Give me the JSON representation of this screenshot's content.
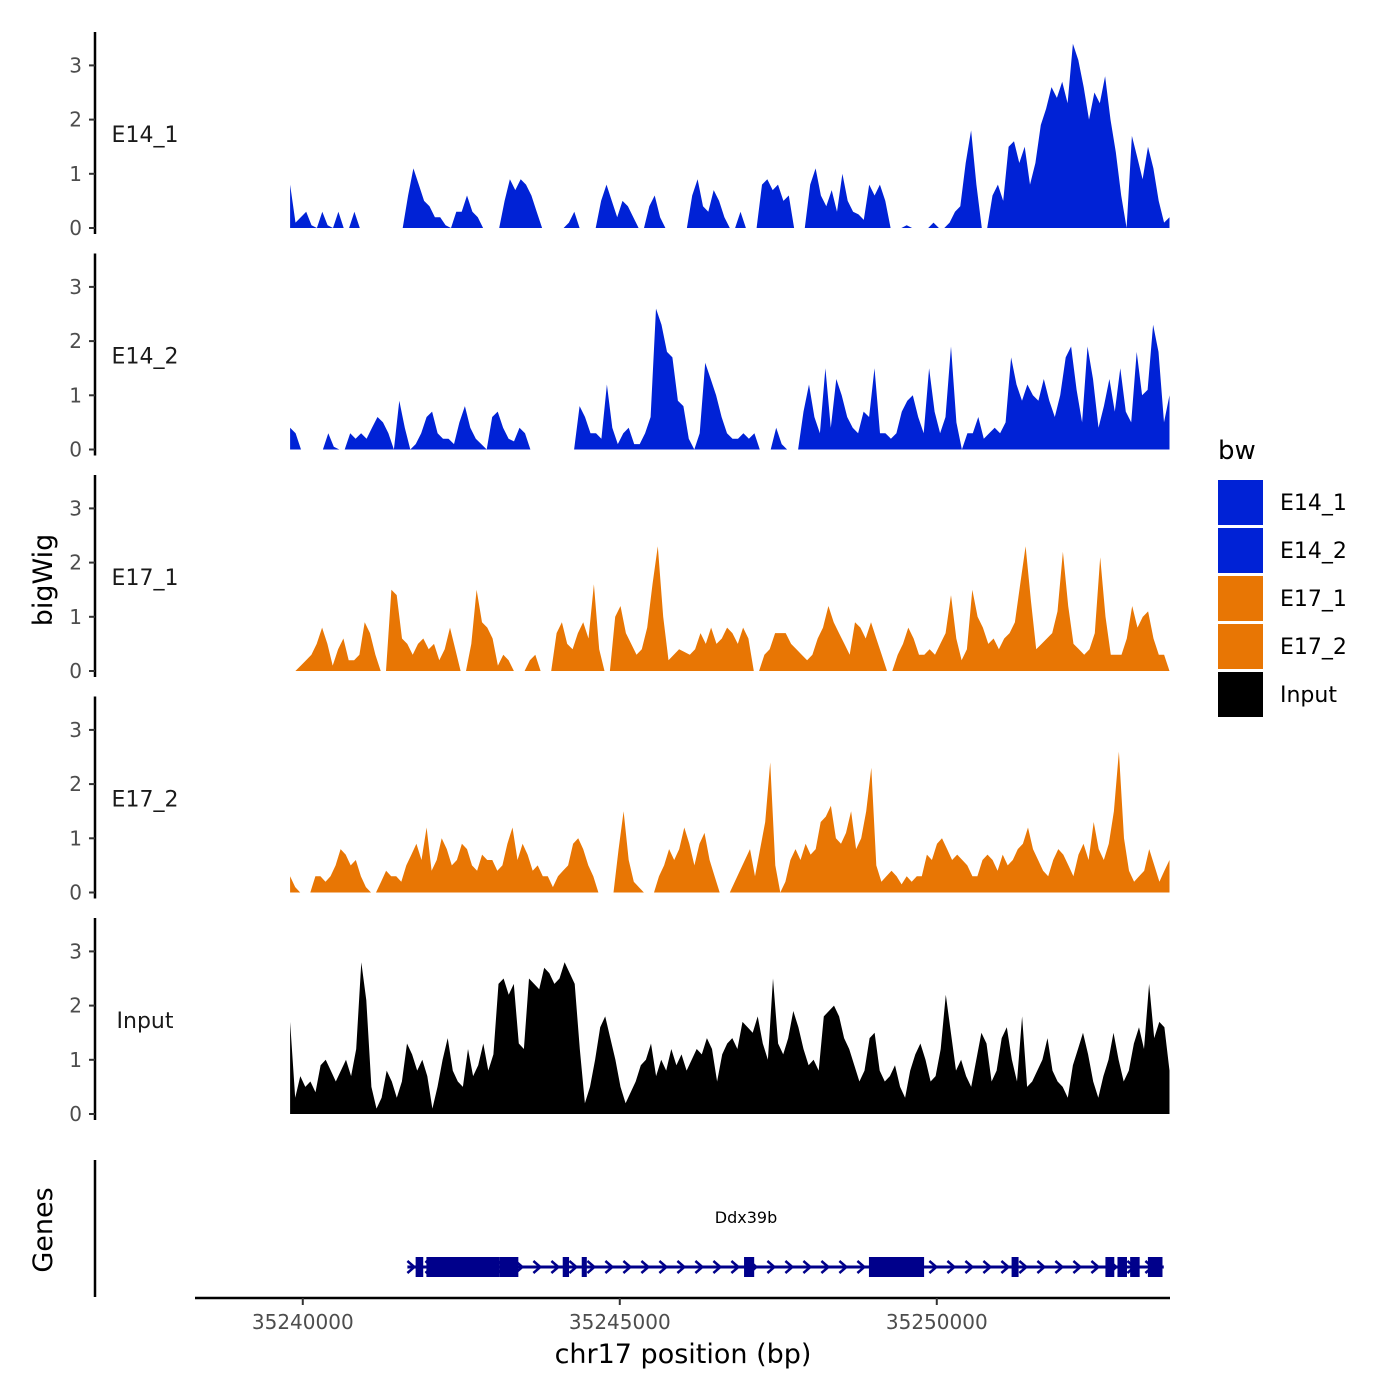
{
  "chart_data": {
    "type": "area",
    "chromosome": "chr17",
    "xlabel": "chr17 position (bp)",
    "ylabel": "bigWig",
    "genes_label": "Genes",
    "xlim": [
      35238300,
      35253600
    ],
    "data_range": [
      35239800,
      35253670
    ],
    "xticks": [
      35240000,
      35245000,
      35250000
    ],
    "xtick_labels": [
      "35240000",
      "35245000",
      "35250000"
    ],
    "ylim": [
      0,
      3.6
    ],
    "yticks": [
      0,
      1,
      2,
      3
    ],
    "ytick_labels": [
      "0",
      "1",
      "2",
      "3"
    ],
    "legend": {
      "title": "bw",
      "entries": [
        {
          "name": "E14_1",
          "color": "#0022d6"
        },
        {
          "name": "E14_2",
          "color": "#0022d6"
        },
        {
          "name": "E17_1",
          "color": "#e87604"
        },
        {
          "name": "E17_2",
          "color": "#e87604"
        },
        {
          "name": "Input",
          "color": "#000000"
        }
      ]
    },
    "series": [
      {
        "name": "E14_1",
        "color": "#0022d6",
        "values": [
          0.8,
          0.1,
          0.2,
          0.3,
          0.05,
          0,
          0.3,
          0.05,
          0,
          0.3,
          0,
          0,
          0.3,
          0,
          0,
          0,
          0,
          0,
          0,
          0,
          0,
          0,
          0.6,
          1.1,
          0.8,
          0.5,
          0.4,
          0.2,
          0.2,
          0.05,
          0,
          0.3,
          0.3,
          0.6,
          0.3,
          0.2,
          0,
          0,
          0,
          0,
          0.5,
          0.9,
          0.7,
          0.9,
          0.8,
          0.6,
          0.3,
          0,
          0,
          0,
          0,
          0,
          0.1,
          0.3,
          0,
          0,
          0,
          0,
          0.5,
          0.8,
          0.5,
          0.2,
          0.5,
          0.4,
          0.2,
          0,
          0,
          0.4,
          0.6,
          0.2,
          0,
          0,
          0,
          0,
          0,
          0.6,
          0.9,
          0.4,
          0.3,
          0.7,
          0.5,
          0.2,
          0,
          0,
          0.3,
          0,
          0,
          0,
          0.8,
          0.9,
          0.7,
          0.8,
          0.5,
          0.6,
          0,
          0,
          0,
          0.8,
          1.1,
          0.6,
          0.4,
          0.7,
          0.3,
          1.0,
          0.5,
          0.3,
          0.25,
          0.15,
          0.8,
          0.6,
          0.8,
          0.5,
          0,
          0,
          0,
          0.05,
          0,
          0,
          0,
          0,
          0.1,
          0,
          0,
          0.1,
          0.3,
          0.4,
          1.2,
          1.8,
          0.8,
          0,
          0,
          0.6,
          0.8,
          0.5,
          1.5,
          1.6,
          1.2,
          1.5,
          0.8,
          1.2,
          1.9,
          2.2,
          2.6,
          2.4,
          2.7,
          2.3,
          3.4,
          3.1,
          2.6,
          2.0,
          2.5,
          2.3,
          2.8,
          2.0,
          1.4,
          0.6,
          0,
          1.7,
          1.3,
          0.9,
          1.5,
          1.1,
          0.5,
          0.1,
          0.2
        ]
      },
      {
        "name": "E14_2",
        "color": "#0022d6",
        "values": [
          0.4,
          0.3,
          0,
          0,
          0,
          0,
          0,
          0.3,
          0.05,
          0,
          0,
          0.3,
          0.2,
          0.3,
          0.2,
          0.4,
          0.6,
          0.5,
          0.3,
          0,
          0.9,
          0.4,
          0,
          0.1,
          0.3,
          0.6,
          0.7,
          0.3,
          0.2,
          0.2,
          0.1,
          0.5,
          0.8,
          0.4,
          0.2,
          0.1,
          0,
          0.6,
          0.7,
          0.4,
          0.2,
          0.15,
          0.4,
          0.3,
          0,
          0,
          0,
          0,
          0,
          0,
          0,
          0,
          0,
          0.8,
          0.6,
          0.3,
          0.3,
          0.2,
          1.2,
          0.4,
          0.1,
          0.3,
          0.4,
          0.1,
          0.1,
          0.3,
          0.6,
          2.6,
          2.3,
          1.8,
          1.7,
          0.9,
          0.8,
          0.2,
          0,
          0.3,
          1.6,
          1.3,
          1.0,
          0.6,
          0.3,
          0.2,
          0.2,
          0.3,
          0.2,
          0.3,
          0,
          0,
          0,
          0.4,
          0.1,
          0,
          0,
          0,
          0.7,
          1.2,
          0.6,
          0.3,
          1.5,
          0.4,
          1.3,
          1.0,
          0.6,
          0.4,
          0.3,
          0.7,
          0.6,
          1.5,
          0.3,
          0.3,
          0.2,
          0.3,
          0.7,
          0.9,
          1.0,
          0.6,
          0.3,
          1.5,
          0.7,
          0.3,
          0.6,
          1.9,
          0.5,
          0,
          0.3,
          0.3,
          0.6,
          0.2,
          0.3,
          0.4,
          0.3,
          0.5,
          1.7,
          1.2,
          0.9,
          1.2,
          1.0,
          0.9,
          1.3,
          0.9,
          0.6,
          1.0,
          1.7,
          1.9,
          1.1,
          0.5,
          1.9,
          1.3,
          0.4,
          0.8,
          1.3,
          0.7,
          1.5,
          0.7,
          0.5,
          1.8,
          1.0,
          1.1,
          2.3,
          1.8,
          0.5,
          1.0
        ]
      },
      {
        "name": "E17_1",
        "color": "#e87604",
        "values": [
          0,
          0,
          0.1,
          0.2,
          0.3,
          0.5,
          0.8,
          0.5,
          0.1,
          0.4,
          0.6,
          0.2,
          0.2,
          0.3,
          0.9,
          0.7,
          0.3,
          0,
          0,
          1.5,
          1.4,
          0.6,
          0.5,
          0.3,
          0.5,
          0.6,
          0.4,
          0.5,
          0.2,
          0.4,
          0.8,
          0.4,
          0,
          0,
          0.5,
          1.5,
          0.9,
          0.8,
          0.6,
          0.1,
          0.3,
          0.2,
          0,
          0,
          0,
          0.2,
          0.3,
          0,
          0,
          0,
          0.7,
          0.9,
          0.5,
          0.4,
          0.7,
          0.9,
          0.6,
          1.6,
          0.4,
          0,
          0,
          1.0,
          1.2,
          0.7,
          0.5,
          0.3,
          0.4,
          0.8,
          1.6,
          2.3,
          1.0,
          0.2,
          0.3,
          0.4,
          0.35,
          0.3,
          0.4,
          0.7,
          0.5,
          0.8,
          0.5,
          0.6,
          0.8,
          0.7,
          0.5,
          0.8,
          0.6,
          0,
          0,
          0.3,
          0.4,
          0.7,
          0.7,
          0.7,
          0.5,
          0.4,
          0.3,
          0.2,
          0.3,
          0.6,
          0.8,
          1.2,
          0.9,
          0.7,
          0.5,
          0.3,
          0.9,
          0.8,
          0.6,
          0.9,
          0.6,
          0.3,
          0,
          0,
          0.3,
          0.5,
          0.8,
          0.6,
          0.3,
          0.3,
          0.4,
          0.3,
          0.5,
          0.7,
          1.4,
          0.6,
          0.2,
          0.4,
          1.5,
          1.0,
          0.8,
          0.5,
          0.6,
          0.4,
          0.6,
          0.7,
          0.9,
          1.6,
          2.3,
          1.3,
          0.4,
          0.5,
          0.6,
          0.7,
          1.1,
          2.2,
          1.2,
          0.5,
          0.4,
          0.3,
          0.4,
          0.7,
          2.1,
          1.0,
          0.3,
          0.3,
          0.3,
          0.6,
          1.2,
          0.8,
          1.0,
          1.1,
          0.6,
          0.3,
          0.3,
          0
        ]
      },
      {
        "name": "E17_2",
        "color": "#e87604",
        "values": [
          0.3,
          0.1,
          0,
          0,
          0,
          0.3,
          0.3,
          0.2,
          0.3,
          0.5,
          0.8,
          0.7,
          0.5,
          0.6,
          0.3,
          0.1,
          0,
          0,
          0.2,
          0.4,
          0.3,
          0.3,
          0.2,
          0.5,
          0.7,
          0.9,
          0.6,
          1.2,
          0.4,
          0.6,
          1.0,
          0.8,
          0.5,
          0.6,
          0.9,
          0.8,
          0.5,
          0.4,
          0.7,
          0.6,
          0.6,
          0.4,
          0.5,
          0.9,
          1.2,
          0.6,
          0.9,
          0.7,
          0.4,
          0.5,
          0.3,
          0.3,
          0.1,
          0.3,
          0.4,
          0.5,
          0.9,
          1.0,
          0.8,
          0.5,
          0.3,
          0,
          0,
          0,
          0,
          0.8,
          1.5,
          0.6,
          0.2,
          0.1,
          0,
          0,
          0,
          0.3,
          0.5,
          0.8,
          0.6,
          0.8,
          1.2,
          0.9,
          0.5,
          0.9,
          1.1,
          0.6,
          0.3,
          0,
          0,
          0,
          0.2,
          0.4,
          0.6,
          0.8,
          0.3,
          0.8,
          1.3,
          2.4,
          0.5,
          0,
          0.2,
          0.6,
          0.8,
          0.6,
          0.9,
          0.7,
          0.8,
          1.3,
          1.4,
          1.6,
          1.0,
          0.9,
          1.1,
          1.5,
          0.8,
          1.0,
          1.5,
          2.3,
          0.5,
          0.2,
          0.3,
          0.4,
          0.3,
          0.15,
          0.3,
          0.2,
          0.3,
          0.3,
          0.7,
          0.6,
          0.9,
          1.0,
          0.8,
          0.6,
          0.7,
          0.6,
          0.5,
          0.3,
          0.3,
          0.6,
          0.7,
          0.6,
          0.4,
          0.7,
          0.5,
          0.6,
          0.8,
          0.9,
          1.2,
          0.8,
          0.6,
          0.4,
          0.3,
          0.6,
          0.8,
          0.7,
          0.5,
          0.3,
          0.7,
          0.9,
          0.6,
          1.3,
          0.8,
          0.6,
          0.9,
          1.5,
          2.6,
          1.0,
          0.4,
          0.2,
          0.3,
          0.4,
          0.8,
          0.5,
          0.2,
          0.4,
          0.6
        ]
      },
      {
        "name": "Input",
        "color": "#000000",
        "values": [
          1.7,
          0.3,
          0.7,
          0.5,
          0.6,
          0.4,
          0.9,
          1.0,
          0.8,
          0.6,
          0.8,
          1.0,
          0.7,
          1.2,
          2.8,
          2.1,
          0.5,
          0.1,
          0.3,
          0.8,
          0.6,
          0.3,
          0.6,
          1.3,
          1.1,
          0.8,
          1.0,
          0.7,
          0.1,
          0.5,
          1.0,
          1.4,
          0.8,
          0.6,
          0.5,
          1.2,
          0.7,
          0.9,
          1.3,
          0.8,
          1.1,
          2.4,
          2.5,
          2.2,
          2.4,
          1.3,
          1.2,
          2.5,
          2.4,
          2.3,
          2.7,
          2.6,
          2.4,
          2.5,
          2.8,
          2.6,
          2.4,
          1.2,
          0.2,
          0.5,
          1.0,
          1.6,
          1.8,
          1.4,
          1.0,
          0.5,
          0.2,
          0.4,
          0.6,
          0.9,
          1.0,
          1.3,
          0.7,
          1.0,
          0.8,
          1.2,
          0.9,
          1.1,
          0.8,
          1.0,
          1.2,
          1.1,
          1.4,
          1.2,
          0.6,
          1.1,
          1.3,
          1.4,
          1.2,
          1.7,
          1.6,
          1.5,
          1.8,
          1.3,
          1.0,
          2.5,
          1.3,
          1.1,
          1.4,
          1.9,
          1.6,
          1.2,
          0.9,
          1.0,
          0.8,
          1.8,
          1.9,
          2.0,
          1.8,
          1.4,
          1.2,
          0.9,
          0.6,
          0.8,
          1.4,
          1.5,
          0.8,
          0.6,
          0.7,
          0.9,
          0.5,
          0.3,
          0.8,
          1.1,
          1.3,
          1.0,
          0.6,
          0.7,
          1.2,
          2.2,
          1.5,
          0.8,
          1.0,
          0.7,
          0.5,
          1.0,
          1.5,
          1.3,
          0.6,
          0.8,
          1.4,
          1.6,
          1.0,
          0.6,
          1.8,
          0.5,
          0.6,
          0.8,
          1.0,
          1.4,
          0.8,
          0.6,
          0.5,
          0.3,
          0.9,
          1.2,
          1.5,
          1.1,
          0.6,
          0.3,
          0.7,
          1.0,
          1.5,
          1.0,
          0.6,
          0.8,
          1.3,
          1.6,
          1.2,
          2.4,
          1.4,
          1.7,
          1.6,
          0.8
        ]
      }
    ],
    "gene": {
      "name": "Ddx39b",
      "strand": "+",
      "start": 35241650,
      "end": 35253580,
      "exons": [
        [
          35241780,
          35241900
        ],
        [
          35241950,
          35243100
        ],
        [
          35243100,
          35243400
        ],
        [
          35244100,
          35244200
        ],
        [
          35244400,
          35244480
        ],
        [
          35246960,
          35247120
        ],
        [
          35248930,
          35249800
        ],
        [
          35251180,
          35251290
        ],
        [
          35252660,
          35252800
        ],
        [
          35252850,
          35253000
        ],
        [
          35253050,
          35253200
        ],
        [
          35253330,
          35253560
        ]
      ]
    }
  }
}
